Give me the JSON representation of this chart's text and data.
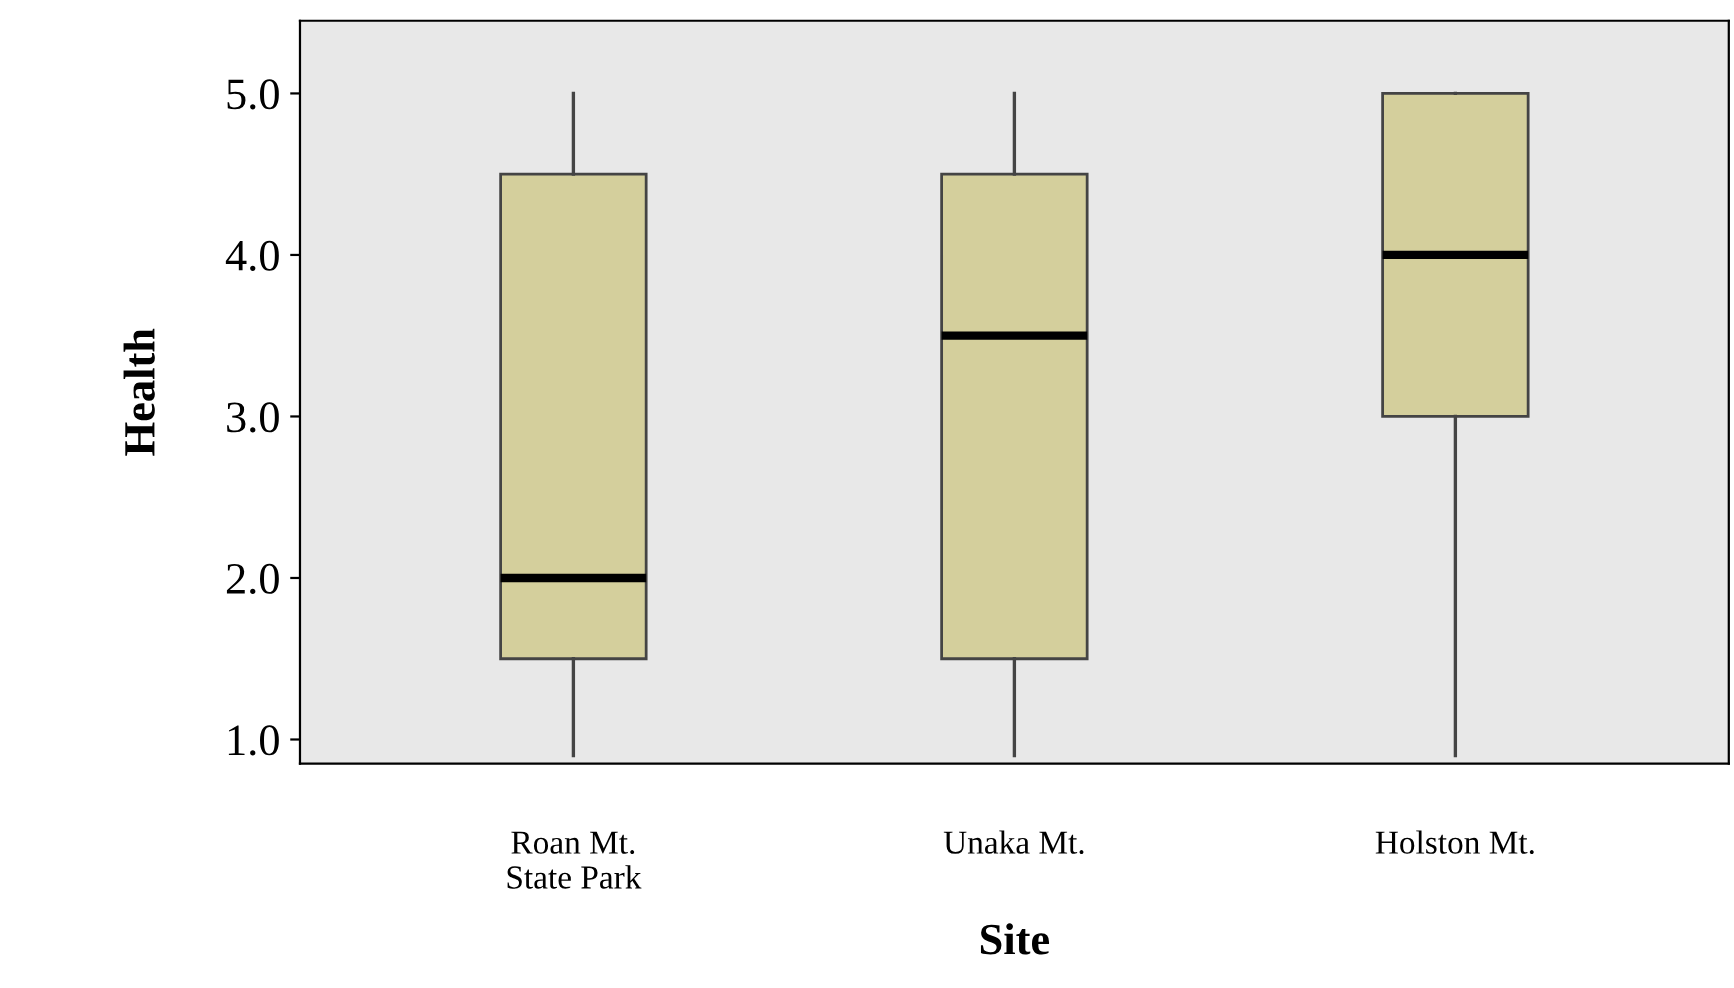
{
  "chart_data": {
    "type": "box",
    "xlabel": "Site",
    "ylabel": "Health",
    "categories": [
      "Roan Mt.\nState Park",
      "Unaka Mt.",
      "Holston Mt."
    ],
    "series": [
      {
        "color": "#d4cf9c",
        "boxes": [
          {
            "low": 0.9,
            "q1": 1.5,
            "median": 2.0,
            "q3": 4.5,
            "high": 5.0
          },
          {
            "low": 0.9,
            "q1": 1.5,
            "median": 3.5,
            "q3": 4.5,
            "high": 5.0
          },
          {
            "low": 0.9,
            "q1": 3.0,
            "median": 4.0,
            "q3": 5.0,
            "high": 5.0
          }
        ]
      }
    ],
    "ylim": [
      0.85,
      5.45
    ],
    "yticks": [
      {
        "value": 1,
        "label": "1.0"
      },
      {
        "value": 2,
        "label": "2.0"
      },
      {
        "value": 3,
        "label": "3.0"
      },
      {
        "value": 4,
        "label": "4.0"
      },
      {
        "value": 5,
        "label": "5.0"
      }
    ],
    "grid": false,
    "legend": false
  }
}
